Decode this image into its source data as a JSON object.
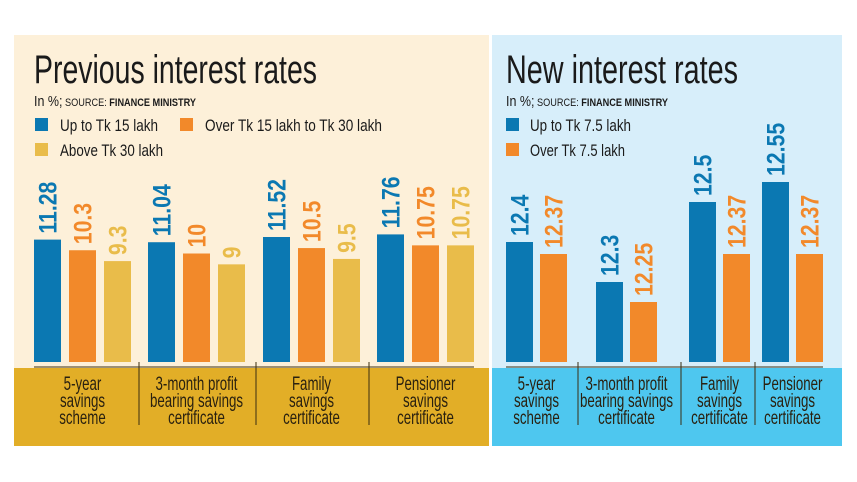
{
  "colors": {
    "blue": "#0b78b2",
    "orange": "#f2892a",
    "yellow": "#e9bc4a",
    "left_bg": "#fdf0d9",
    "left_band": "#e2ae27",
    "right_bg": "#d7eefa",
    "right_band": "#4ec7ef"
  },
  "chart_data": [
    {
      "type": "bar",
      "title": "Previous interest rates",
      "subtitle_prefix": "In %;",
      "source_label": "SOURCE:",
      "source": "FINANCE MINISTRY",
      "categories": [
        [
          "5-year",
          "savings",
          "scheme"
        ],
        [
          "3-month profit",
          "bearing savings",
          "certificate"
        ],
        [
          "Family",
          "savings",
          "certificate"
        ],
        [
          "Pensioner",
          "savings",
          "certificate"
        ]
      ],
      "series": [
        {
          "name": "Up to Tk 15 lakh",
          "color": "#0b78b2",
          "values": [
            11.28,
            11.04,
            11.52,
            11.76
          ],
          "labels": [
            "11.28",
            "11.04",
            "11.52",
            "11.76"
          ]
        },
        {
          "name": "Over Tk 15 lakh to Tk 30 lakh",
          "color": "#f2892a",
          "values": [
            10.3,
            10,
            10.5,
            10.75
          ],
          "labels": [
            "10.3",
            "10",
            "10.5",
            "10.75"
          ]
        },
        {
          "name": "Above Tk 30 lakh",
          "color": "#e9bc4a",
          "values": [
            9.3,
            9,
            9.5,
            10.75
          ],
          "labels": [
            "9.3",
            "9",
            "9.5",
            "10.75"
          ]
        }
      ],
      "ylim": [
        0,
        14
      ],
      "grid": false,
      "legend": "top-left"
    },
    {
      "type": "bar",
      "title": "New interest rates",
      "subtitle_prefix": "In %;",
      "source_label": "SOURCE:",
      "source": "FINANCE MINISTRY",
      "categories": [
        [
          "5-year",
          "savings",
          "scheme"
        ],
        [
          "3-month profit",
          "bearing savings",
          "certificate"
        ],
        [
          "Family",
          "savings",
          "certificate"
        ],
        [
          "Pensioner",
          "savings",
          "certificate"
        ]
      ],
      "series": [
        {
          "name": "Up to Tk 7.5 lakh",
          "color": "#0b78b2",
          "values": [
            12.4,
            12.3,
            12.5,
            12.55
          ],
          "labels": [
            "12.4",
            "12.3",
            "12.5",
            "12.55"
          ]
        },
        {
          "name": "Over Tk 7.5 lakh",
          "color": "#f2892a",
          "values": [
            12.37,
            12.25,
            12.37,
            12.37
          ],
          "labels": [
            "12.37",
            "12.25",
            "12.37",
            "12.37"
          ]
        }
      ],
      "ylim": [
        12.1,
        12.7
      ],
      "grid": false,
      "legend": "top-left"
    }
  ]
}
